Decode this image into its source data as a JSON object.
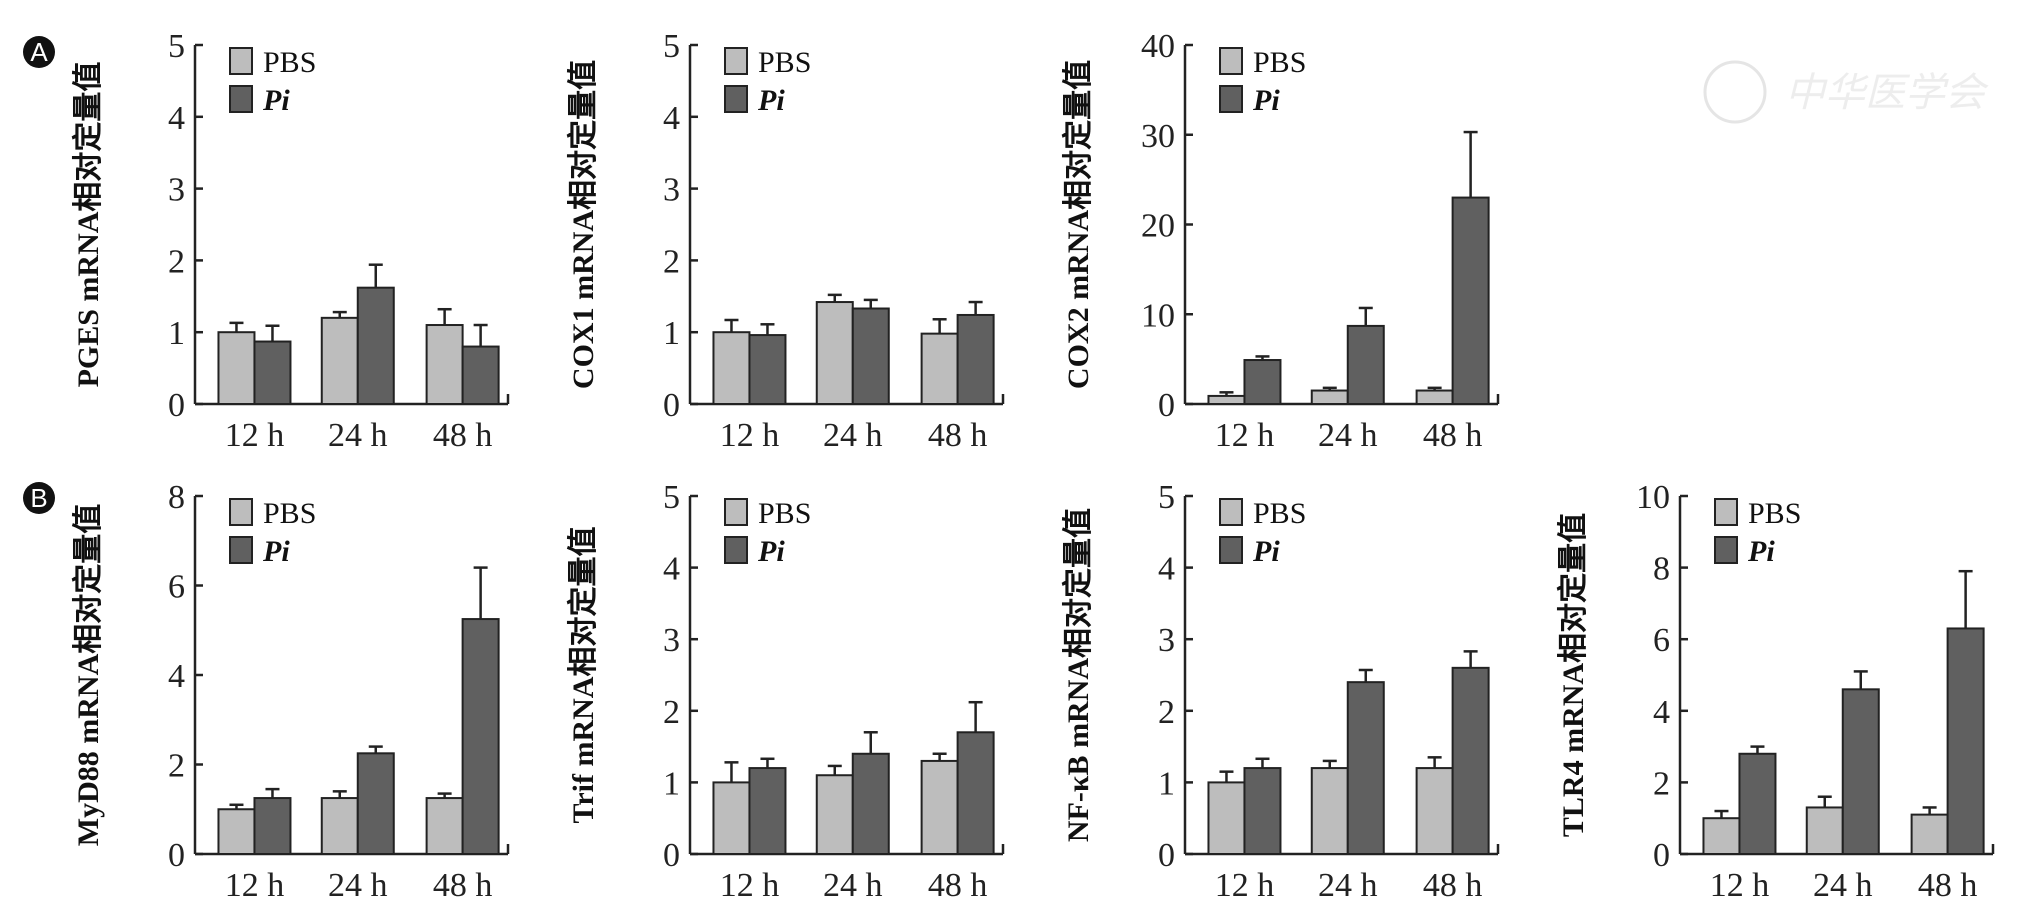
{
  "panel_labels": [
    "A",
    "B"
  ],
  "watermark": "中华医学会",
  "colors": {
    "PBS": "#bdbdbd",
    "Pi": "#606060",
    "axis": "#222222"
  },
  "chart_data": [
    {
      "type": "bar",
      "panel": "A",
      "ylabel": "PGES mRNA相对定量值",
      "categories": [
        "12 h",
        "24 h",
        "48 h"
      ],
      "ylim": [
        0,
        5
      ],
      "yticks": [
        0,
        1,
        2,
        3,
        4,
        5
      ],
      "legend": "top-left",
      "series": [
        {
          "name": "PBS",
          "values": [
            1.0,
            1.2,
            1.1
          ],
          "errors": [
            0.13,
            0.08,
            0.22
          ]
        },
        {
          "name": "Pi",
          "values": [
            0.87,
            1.62,
            0.8
          ],
          "errors": [
            0.22,
            0.32,
            0.3
          ]
        }
      ]
    },
    {
      "type": "bar",
      "panel": "A",
      "ylabel": "COX1 mRNA相对定量值",
      "categories": [
        "12 h",
        "24 h",
        "48 h"
      ],
      "ylim": [
        0,
        5
      ],
      "yticks": [
        0,
        1,
        2,
        3,
        4,
        5
      ],
      "legend": "top-left",
      "series": [
        {
          "name": "PBS",
          "values": [
            1.0,
            1.42,
            0.98
          ],
          "errors": [
            0.17,
            0.1,
            0.2
          ]
        },
        {
          "name": "Pi",
          "values": [
            0.96,
            1.33,
            1.24
          ],
          "errors": [
            0.15,
            0.12,
            0.18
          ]
        }
      ]
    },
    {
      "type": "bar",
      "panel": "A",
      "ylabel": "COX2 mRNA相对定量值",
      "categories": [
        "12 h",
        "24 h",
        "48 h"
      ],
      "ylim": [
        0,
        40
      ],
      "yticks": [
        0,
        10,
        20,
        30,
        40
      ],
      "legend": "top-left",
      "series": [
        {
          "name": "PBS",
          "values": [
            0.9,
            1.5,
            1.5
          ],
          "errors": [
            0.4,
            0.3,
            0.3
          ]
        },
        {
          "name": "Pi",
          "values": [
            4.9,
            8.7,
            23.0
          ],
          "errors": [
            0.4,
            2.0,
            7.3
          ]
        }
      ]
    },
    {
      "type": "bar",
      "panel": "B",
      "ylabel": "MyD88 mRNA相对定量值",
      "categories": [
        "12 h",
        "24 h",
        "48 h"
      ],
      "ylim": [
        0,
        8
      ],
      "yticks": [
        0,
        2,
        4,
        6,
        8
      ],
      "legend": "top-left",
      "series": [
        {
          "name": "PBS",
          "values": [
            1.0,
            1.25,
            1.25
          ],
          "errors": [
            0.1,
            0.15,
            0.1
          ]
        },
        {
          "name": "Pi",
          "values": [
            1.25,
            2.25,
            5.25
          ],
          "errors": [
            0.2,
            0.15,
            1.15
          ]
        }
      ]
    },
    {
      "type": "bar",
      "panel": "B",
      "ylabel": "Trif mRNA相对定量值",
      "categories": [
        "12 h",
        "24 h",
        "48 h"
      ],
      "ylim": [
        0,
        5
      ],
      "yticks": [
        0,
        1,
        2,
        3,
        4,
        5
      ],
      "legend": "top-left",
      "series": [
        {
          "name": "PBS",
          "values": [
            1.0,
            1.1,
            1.3
          ],
          "errors": [
            0.28,
            0.13,
            0.1
          ]
        },
        {
          "name": "Pi",
          "values": [
            1.2,
            1.4,
            1.7
          ],
          "errors": [
            0.13,
            0.3,
            0.42
          ]
        }
      ]
    },
    {
      "type": "bar",
      "panel": "B",
      "ylabel": "NF-κB mRNA相对定量值",
      "categories": [
        "12 h",
        "24 h",
        "48 h"
      ],
      "ylim": [
        0,
        5
      ],
      "yticks": [
        0,
        1,
        2,
        3,
        4,
        5
      ],
      "legend": "top-left",
      "series": [
        {
          "name": "PBS",
          "values": [
            1.0,
            1.2,
            1.2
          ],
          "errors": [
            0.15,
            0.1,
            0.15
          ]
        },
        {
          "name": "Pi",
          "values": [
            1.2,
            2.4,
            2.6
          ],
          "errors": [
            0.13,
            0.17,
            0.23
          ]
        }
      ]
    },
    {
      "type": "bar",
      "panel": "B",
      "ylabel": "TLR4 mRNA相对定量值",
      "categories": [
        "12 h",
        "24 h",
        "48 h"
      ],
      "ylim": [
        0,
        10
      ],
      "yticks": [
        0,
        2,
        4,
        6,
        8,
        10
      ],
      "legend": "top-left",
      "series": [
        {
          "name": "PBS",
          "values": [
            1.0,
            1.3,
            1.1
          ],
          "errors": [
            0.2,
            0.3,
            0.2
          ]
        },
        {
          "name": "Pi",
          "values": [
            2.8,
            4.6,
            6.3
          ],
          "errors": [
            0.2,
            0.5,
            1.6
          ]
        }
      ]
    }
  ]
}
